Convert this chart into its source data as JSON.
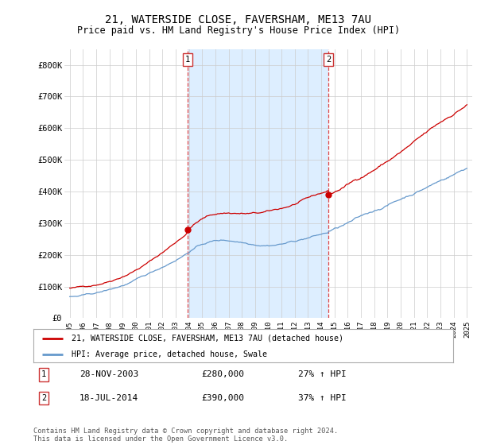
{
  "title": "21, WATERSIDE CLOSE, FAVERSHAM, ME13 7AU",
  "subtitle": "Price paid vs. HM Land Registry's House Price Index (HPI)",
  "ylim": [
    0,
    850000
  ],
  "yticks": [
    0,
    100000,
    200000,
    300000,
    400000,
    500000,
    600000,
    700000,
    800000
  ],
  "ytick_labels": [
    "£0",
    "£100K",
    "£200K",
    "£300K",
    "£400K",
    "£500K",
    "£600K",
    "£700K",
    "£800K"
  ],
  "transaction1": {
    "price": 280000,
    "label_display": "28-NOV-2003",
    "pct": "27% ↑ HPI"
  },
  "transaction2": {
    "price": 390000,
    "label_display": "18-JUL-2014",
    "pct": "37% ↑ HPI"
  },
  "red_color": "#cc0000",
  "blue_color": "#6699cc",
  "dashed_color": "#dd4444",
  "shade_color": "#ddeeff",
  "legend_label_red": "21, WATERSIDE CLOSE, FAVERSHAM, ME13 7AU (detached house)",
  "legend_label_blue": "HPI: Average price, detached house, Swale",
  "footer": "Contains HM Land Registry data © Crown copyright and database right 2024.\nThis data is licensed under the Open Government Licence v3.0.",
  "transaction1_x": 2003.917,
  "transaction2_x": 2014.542,
  "background_color": "#ffffff",
  "grid_color": "#cccccc"
}
